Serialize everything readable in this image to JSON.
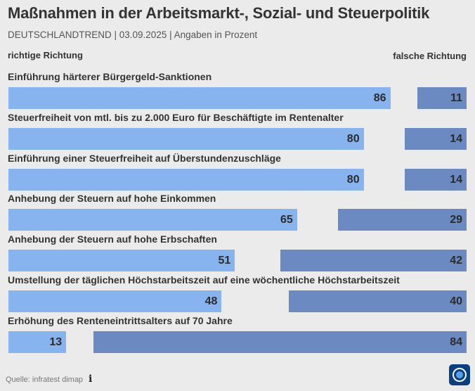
{
  "header": {
    "title": "Maßnahmen in der Arbeitsmarkt-, Sozial- und Steuerpolitik",
    "subtitle": "DEUTSCHLANDTREND | 03.09.2025 | Angaben in Prozent"
  },
  "legend": {
    "left": "richtige Richtung",
    "right": "falsche Richtung"
  },
  "footer": {
    "source": "Quelle: infratest dimap",
    "info_icon": "info-icon",
    "logo_icon": "broadcaster-logo-icon"
  },
  "colors": {
    "richtige": "#87b4ee",
    "falsche": "#6a8ac1",
    "background": "#ebebeb"
  },
  "chart_data": {
    "type": "bar",
    "orientation": "horizontal-diverging",
    "title": "Maßnahmen in der Arbeitsmarkt-, Sozial- und Steuerpolitik",
    "subtitle": "DEUTSCHLANDTREND | 03.09.2025 | Angaben in Prozent",
    "xlim": [
      0,
      100
    ],
    "grid": false,
    "legend_position": "top",
    "categories": [
      "Einführung härterer Bürgergeld-Sanktionen",
      "Steuerfreiheit von mtl. bis zu 2.000 Euro für Beschäftigte im Rentenalter",
      "Einführung einer Steuerfreiheit auf Überstundenzuschläge",
      "Anhebung der Steuern auf hohe Einkommen",
      "Anhebung der Steuern auf hohe Erbschaften",
      "Umstellung der täglichen Höchstarbeitszeit auf eine wöchentliche Höchstarbeitszeit",
      "Erhöhung des Renteneintrittsalters auf 70 Jahre"
    ],
    "series": [
      {
        "name": "richtige Richtung",
        "values": [
          86,
          80,
          80,
          65,
          51,
          48,
          13
        ]
      },
      {
        "name": "falsche Richtung",
        "values": [
          11,
          14,
          14,
          29,
          42,
          40,
          84
        ]
      }
    ]
  }
}
